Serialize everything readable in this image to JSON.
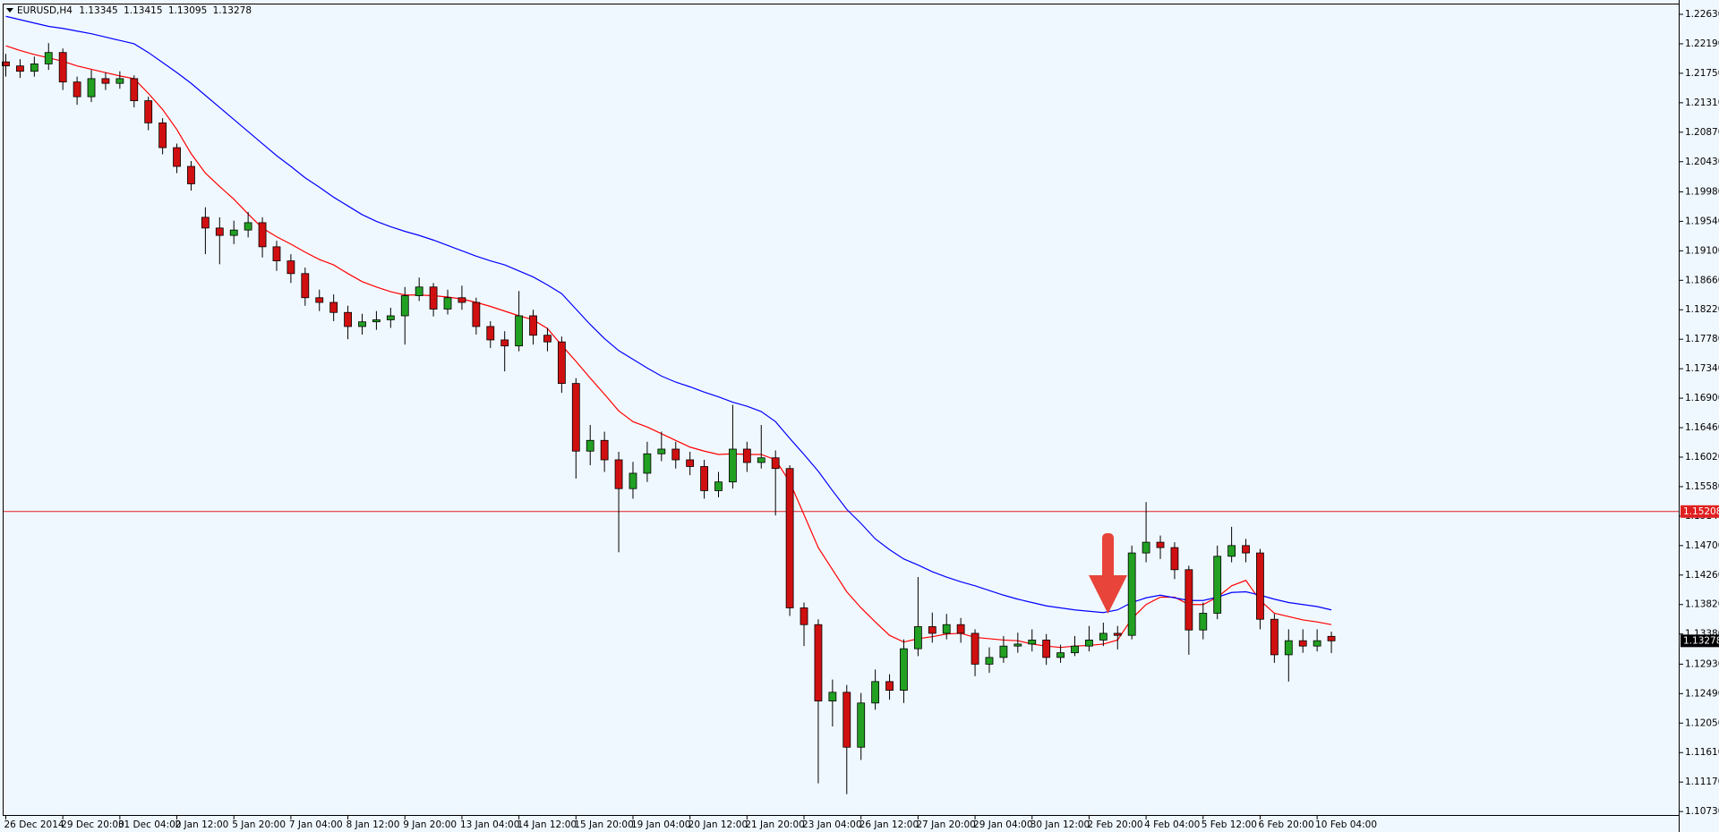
{
  "chart_data": {
    "type": "candlestick",
    "symbol": "EURUSD,H4",
    "background": "#f0f8ff",
    "up_color": "#22a022",
    "down_color": "#d01010",
    "categories": [
      "26 Dec 2014",
      null,
      null,
      null,
      "29 Dec 20:00",
      null,
      null,
      null,
      "31 Dec 04:00",
      null,
      null,
      null,
      "2 Jan 12:00",
      null,
      null,
      null,
      "5 Jan 20:00",
      null,
      null,
      null,
      "7 Jan 04:00",
      null,
      null,
      null,
      "8 Jan 12:00",
      null,
      null,
      null,
      "9 Jan 20:00",
      null,
      null,
      null,
      "13 Jan 04:00",
      null,
      null,
      null,
      "14 Jan 12:00",
      null,
      null,
      null,
      "15 Jan 20:00",
      null,
      null,
      null,
      "19 Jan 04:00",
      null,
      null,
      null,
      "20 Jan 12:00",
      null,
      null,
      null,
      "21 Jan 20:00",
      null,
      null,
      null,
      "23 Jan 04:00",
      null,
      null,
      null,
      "26 Jan 12:00",
      null,
      null,
      null,
      "27 Jan 20:00",
      null,
      null,
      null,
      "29 Jan 04:00",
      null,
      null,
      null,
      "30 Jan 12:00",
      null,
      null,
      null,
      "2 Feb 20:00",
      null,
      null,
      null,
      "4 Feb 04:00",
      null,
      null,
      null,
      "5 Feb 12:00",
      null,
      null,
      null,
      "6 Feb 20:00",
      null,
      null,
      null,
      "10 Feb 04:00",
      null
    ],
    "open": [
      1.2192,
      1.2186,
      1.2178,
      1.2189,
      1.2206,
      1.2162,
      1.214,
      1.2167,
      1.216,
      1.2167,
      1.2134,
      1.2101,
      1.2064,
      1.2036,
      1.196,
      1.1944,
      1.1933,
      1.1941,
      1.1952,
      1.1916,
      1.1895,
      1.1876,
      1.184,
      1.1833,
      1.1818,
      1.1797,
      1.1804,
      1.1807,
      1.1813,
      1.1843,
      1.1856,
      1.1823,
      1.184,
      1.1833,
      1.1797,
      1.1777,
      1.1768,
      1.1813,
      1.1784,
      1.1774,
      1.1712,
      1.1611,
      1.1627,
      1.1598,
      1.1555,
      1.1578,
      1.1607,
      1.1614,
      1.1598,
      1.1588,
      1.1552,
      1.1565,
      1.1614,
      1.1594,
      1.1601,
      1.1585,
      1.1377,
      1.1352,
      1.1238,
      1.1251,
      1.1169,
      1.1235,
      1.1267,
      1.1254,
      1.1316,
      1.1349,
      1.1339,
      1.1352,
      1.1339,
      1.1293,
      1.1303,
      1.132,
      1.1323,
      1.1329,
      1.1303,
      1.131,
      1.132,
      1.1329,
      1.1339,
      1.1336,
      1.1459,
      1.1475,
      1.1467,
      1.1434,
      1.1344,
      1.1369,
      1.1454,
      1.147,
      1.1459,
      1.136,
      1.1307,
      1.1328,
      1.132,
      1.13345
    ],
    "high": [
      1.2204,
      1.2196,
      1.22,
      1.222,
      1.2212,
      1.217,
      1.218,
      1.2176,
      1.2178,
      1.2172,
      1.214,
      1.2108,
      1.207,
      1.2044,
      1.1975,
      1.196,
      1.1955,
      1.1968,
      1.196,
      1.1925,
      1.1905,
      1.1885,
      1.1852,
      1.1845,
      1.1828,
      1.1816,
      1.182,
      1.1825,
      1.1856,
      1.187,
      1.1862,
      1.1852,
      1.1858,
      1.184,
      1.1805,
      1.179,
      1.185,
      1.1822,
      1.1795,
      1.1782,
      1.172,
      1.165,
      1.164,
      1.161,
      1.1595,
      1.1625,
      1.164,
      1.1625,
      1.161,
      1.1598,
      1.158,
      1.168,
      1.1625,
      1.165,
      1.1612,
      1.159,
      1.1385,
      1.136,
      1.127,
      1.1262,
      1.125,
      1.1285,
      1.1278,
      1.133,
      1.1423,
      1.137,
      1.1368,
      1.1362,
      1.1345,
      1.1318,
      1.1335,
      1.134,
      1.1345,
      1.1338,
      1.1322,
      1.1335,
      1.135,
      1.1355,
      1.135,
      1.147,
      1.1535,
      1.1485,
      1.1475,
      1.144,
      1.1385,
      1.147,
      1.1498,
      1.148,
      1.1465,
      1.1368,
      1.1345,
      1.1345,
      1.1345,
      1.13415
    ],
    "low": [
      1.217,
      1.2168,
      1.217,
      1.218,
      1.215,
      1.2128,
      1.2132,
      1.215,
      1.2152,
      1.2124,
      1.209,
      1.2054,
      1.2026,
      1.2,
      1.1905,
      1.189,
      1.192,
      1.193,
      1.19,
      1.188,
      1.1862,
      1.1828,
      1.182,
      1.1805,
      1.1778,
      1.1785,
      1.1792,
      1.1795,
      1.177,
      1.1835,
      1.1812,
      1.1815,
      1.1822,
      1.1785,
      1.1765,
      1.173,
      1.176,
      1.177,
      1.176,
      1.1698,
      1.157,
      1.159,
      1.158,
      1.146,
      1.154,
      1.1565,
      1.1596,
      1.1585,
      1.1575,
      1.154,
      1.1542,
      1.1555,
      1.158,
      1.1585,
      1.1515,
      1.1365,
      1.132,
      1.1115,
      1.12,
      1.1099,
      1.115,
      1.1225,
      1.124,
      1.1235,
      1.1305,
      1.1325,
      1.133,
      1.1325,
      1.1275,
      1.128,
      1.1295,
      1.131,
      1.1312,
      1.1292,
      1.1295,
      1.1305,
      1.1312,
      1.132,
      1.1315,
      1.133,
      1.1445,
      1.145,
      1.142,
      1.1307,
      1.133,
      1.136,
      1.1445,
      1.1445,
      1.1345,
      1.1295,
      1.1267,
      1.131,
      1.1312,
      1.13095
    ],
    "close": [
      1.2186,
      1.2178,
      1.2189,
      1.2206,
      1.2162,
      1.214,
      1.2167,
      1.216,
      1.2167,
      1.2134,
      1.2101,
      1.2064,
      1.2036,
      1.201,
      1.1944,
      1.1933,
      1.1941,
      1.1952,
      1.1916,
      1.1895,
      1.1876,
      1.184,
      1.1833,
      1.1818,
      1.1797,
      1.1804,
      1.1807,
      1.1813,
      1.1843,
      1.1856,
      1.1823,
      1.184,
      1.1833,
      1.1797,
      1.1777,
      1.1768,
      1.1813,
      1.1784,
      1.1774,
      1.1712,
      1.1611,
      1.1627,
      1.1598,
      1.1555,
      1.1578,
      1.1607,
      1.1614,
      1.1598,
      1.1588,
      1.1552,
      1.1565,
      1.1614,
      1.1594,
      1.1601,
      1.1585,
      1.1377,
      1.1352,
      1.1238,
      1.1251,
      1.1169,
      1.1235,
      1.1267,
      1.1254,
      1.1316,
      1.1349,
      1.1339,
      1.1352,
      1.1339,
      1.1293,
      1.1303,
      1.132,
      1.1323,
      1.1329,
      1.1303,
      1.131,
      1.132,
      1.1329,
      1.1339,
      1.1336,
      1.1459,
      1.1475,
      1.1467,
      1.1434,
      1.1344,
      1.1369,
      1.1454,
      1.147,
      1.1459,
      1.136,
      1.1307,
      1.1328,
      1.132,
      1.1328,
      1.13278
    ],
    "lines": [
      {
        "color": "#ff0000",
        "values": [
          1.2216,
          1.2209,
          1.2203,
          1.2198,
          1.2193,
          1.2186,
          1.2181,
          1.2176,
          1.2171,
          1.2167,
          1.2145,
          1.2121,
          1.2091,
          1.2055,
          1.2026,
          1.2006,
          1.1987,
          1.1965,
          1.1944,
          1.1931,
          1.192,
          1.1908,
          1.1897,
          1.1889,
          1.1876,
          1.1864,
          1.1856,
          1.1849,
          1.1844,
          1.1844,
          1.1843,
          1.1841,
          1.1838,
          1.1833,
          1.1827,
          1.182,
          1.1813,
          1.1807,
          1.1794,
          1.1769,
          1.1745,
          1.172,
          1.1696,
          1.1671,
          1.1655,
          1.1647,
          1.1637,
          1.1627,
          1.1617,
          1.1611,
          1.1606,
          1.1607,
          1.1606,
          1.1606,
          1.1598,
          1.1565,
          1.1516,
          1.1467,
          1.1434,
          1.1401,
          1.1377,
          1.1356,
          1.1336,
          1.1326,
          1.1331,
          1.1334,
          1.1338,
          1.1339,
          1.1333,
          1.1331,
          1.1329,
          1.1328,
          1.1323,
          1.132,
          1.1318,
          1.132,
          1.1321,
          1.1323,
          1.1329,
          1.1361,
          1.1382,
          1.1393,
          1.1393,
          1.1382,
          1.1382,
          1.1393,
          1.141,
          1.1418,
          1.1388,
          1.1369,
          1.1364,
          1.1359,
          1.1356,
          1.1352
        ]
      },
      {
        "color": "#0000ff",
        "values": [
          1.226,
          1.2255,
          1.225,
          1.2245,
          1.2242,
          1.2238,
          1.2234,
          1.2229,
          1.2224,
          1.2219,
          1.2206,
          1.2191,
          1.2176,
          1.216,
          1.2142,
          1.2124,
          1.2106,
          1.2088,
          1.207,
          1.2052,
          1.2036,
          1.2019,
          1.2005,
          1.199,
          1.1977,
          1.1964,
          1.1954,
          1.1946,
          1.1939,
          1.1933,
          1.1926,
          1.1918,
          1.191,
          1.1902,
          1.1895,
          1.1889,
          1.188,
          1.1871,
          1.1859,
          1.1846,
          1.1823,
          1.18,
          1.1779,
          1.1761,
          1.1748,
          1.1735,
          1.1723,
          1.1714,
          1.1707,
          1.1699,
          1.1692,
          1.1684,
          1.1678,
          1.167,
          1.1655,
          1.163,
          1.1606,
          1.1581,
          1.1552,
          1.1524,
          1.1503,
          1.148,
          1.1464,
          1.145,
          1.1441,
          1.1431,
          1.1423,
          1.1416,
          1.141,
          1.1403,
          1.1396,
          1.139,
          1.1385,
          1.138,
          1.1377,
          1.1374,
          1.1372,
          1.137,
          1.1374,
          1.1385,
          1.1392,
          1.1396,
          1.1392,
          1.1388,
          1.1388,
          1.1393,
          1.14,
          1.1401,
          1.1396,
          1.139,
          1.1385,
          1.1382,
          1.1379,
          1.1374
        ]
      }
    ],
    "hline": {
      "value": 1.15208,
      "color": "#e02020"
    },
    "ylim": [
      1.10665,
      1.22777
    ],
    "yticks": [
      {
        "value": 1.2263,
        "label": "1.22630"
      },
      {
        "value": 1.2219,
        "label": "1.22190"
      },
      {
        "value": 1.2175,
        "label": "1.21750"
      },
      {
        "value": 1.2131,
        "label": "1.21310"
      },
      {
        "value": 1.2087,
        "label": "1.20870"
      },
      {
        "value": 1.2043,
        "label": "1.20430"
      },
      {
        "value": 1.1998,
        "label": "1.19980"
      },
      {
        "value": 1.1954,
        "label": "1.19540"
      },
      {
        "value": 1.191,
        "label": "1.19100"
      },
      {
        "value": 1.1866,
        "label": "1.18660"
      },
      {
        "value": 1.1822,
        "label": "1.18220"
      },
      {
        "value": 1.1778,
        "label": "1.17780"
      },
      {
        "value": 1.1734,
        "label": "1.17340"
      },
      {
        "value": 1.169,
        "label": "1.16900"
      },
      {
        "value": 1.1646,
        "label": "1.16460"
      },
      {
        "value": 1.1602,
        "label": "1.16020"
      },
      {
        "value": 1.1558,
        "label": "1.15580"
      },
      {
        "value": 1.1514,
        "label": "1.15140"
      },
      {
        "value": 1.147,
        "label": "1.14700"
      },
      {
        "value": 1.1426,
        "label": "1.14260"
      },
      {
        "value": 1.1382,
        "label": "1.13820"
      },
      {
        "value": 1.1338,
        "label": "1.13380"
      },
      {
        "value": 1.1293,
        "label": "1.12930"
      },
      {
        "value": 1.1249,
        "label": "1.12490"
      },
      {
        "value": 1.1205,
        "label": "1.12050"
      },
      {
        "value": 1.1161,
        "label": "1.11610"
      },
      {
        "value": 1.1117,
        "label": "1.11170"
      },
      {
        "value": 1.1073,
        "label": "1.10730"
      }
    ],
    "grid": false
  }
}
